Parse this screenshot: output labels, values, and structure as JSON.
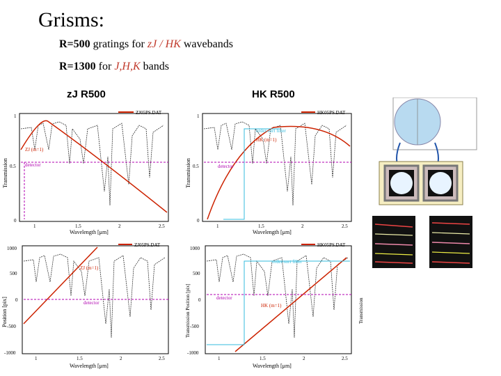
{
  "title": "Grisms:",
  "line1": {
    "prefix": "R=500",
    "mid": " gratings for ",
    "bands": "zJ / HK",
    "suffix": " wavebands"
  },
  "line2": {
    "prefix": "R=1300",
    "mid": " for ",
    "bands": "J,H,K",
    "suffix": " bands"
  },
  "heads": {
    "zj": "zJ R500",
    "hk": "HK R500"
  },
  "plots": {
    "tl": {
      "legend": "ZJ05PS.DAT",
      "ylabel": "Transmission",
      "xlabel": "Wavelength [μm]",
      "yticks": [
        "1",
        "0.5",
        "0"
      ],
      "xticks": [
        "1",
        "1.5",
        "2",
        "2.5"
      ],
      "ann": [
        "ZJ (m=1)",
        "detector"
      ]
    },
    "tr": {
      "legend": "HK05PS.DAT",
      "ylabel": "Transmission",
      "xlabel": "Wavelength [μm]",
      "yticks": [
        "1",
        "0.5",
        "0"
      ],
      "xticks": [
        "1",
        "1.5",
        "2",
        "2.5"
      ],
      "ann": [
        "order-sort filter",
        "HK (m=1)",
        "detector"
      ]
    },
    "bl": {
      "legend": "ZJ05PS.DAT",
      "ylabel": "Position [pix]",
      "xlabel": "Wavelength [μm]",
      "yticks": [
        "1000",
        "500",
        "0",
        "-500",
        "-1000"
      ],
      "xticks": [
        "1",
        "1.5",
        "2",
        "2.5"
      ],
      "ann": [
        "ZJ (m=1)",
        "detector"
      ]
    },
    "br": {
      "legend": "HK05PS.DAT",
      "ylabel": "Transmission Position [pix]",
      "ylabel2": "Transmission",
      "xlabel": "Wavelength [μm]",
      "yticks": [
        "1000",
        "500",
        "0",
        "-500",
        "-1000"
      ],
      "xticks": [
        "1",
        "1.5",
        "2",
        "2.5"
      ],
      "ann": [
        "order-sort filter",
        "detector",
        "HK (m=1)"
      ]
    }
  },
  "colors": {
    "red": "#cc2200",
    "magenta": "#b000b0",
    "cyan": "#33bbdd",
    "accent": "#c0392b"
  }
}
